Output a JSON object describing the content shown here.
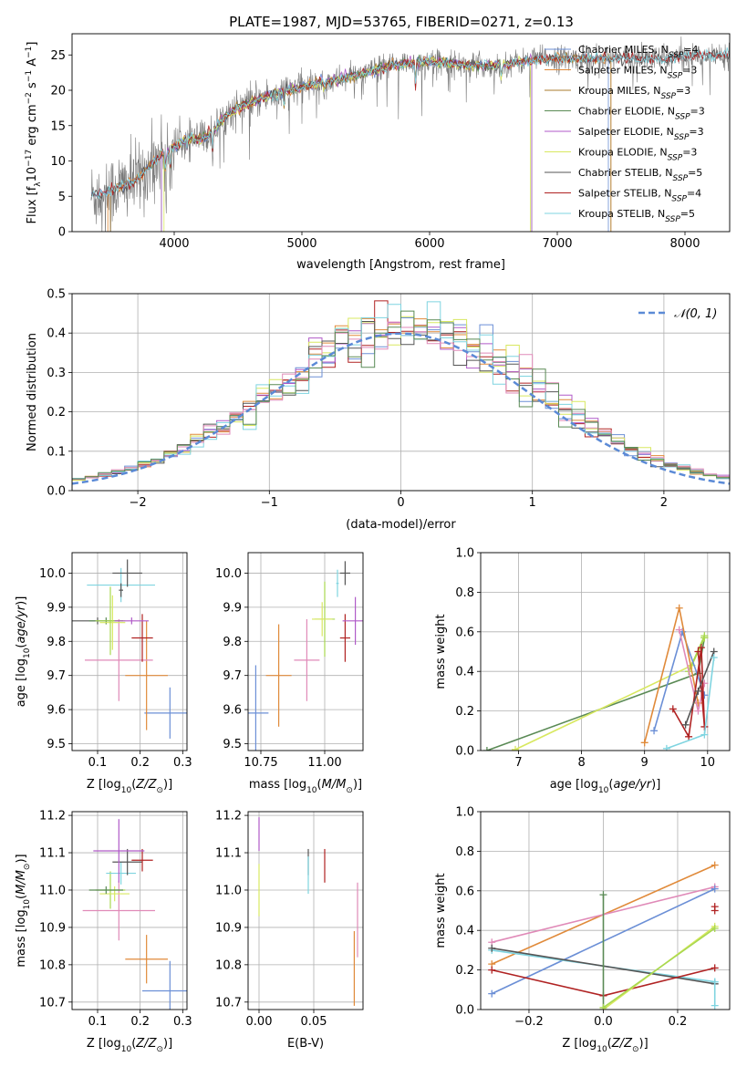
{
  "figure_title": "PLATE=1987, MJD=53765, FIBERID=0271, z=0.13",
  "colors": {
    "Chabrier MILES": "#6b8fd6",
    "Salpeter MILES": "#e08a3a",
    "Kroupa MILES": "#a87b2e",
    "Chabrier ELODIE": "#5a8a55",
    "Salpeter ELODIE": "#b05ac8",
    "Kroupa ELODIE": "#d8e860",
    "Chabrier STELIB": "#555555",
    "Salpeter STELIB": "#b02222",
    "Kroupa STELIB": "#7fd4e0",
    "pink": "#e08ab8",
    "lime": "#a8d850",
    "gaussian": "#5b8ad6"
  },
  "chart_data": [
    {
      "type": "line",
      "id": "spectrum",
      "xlabel": "wavelength [Angstrom, rest frame]",
      "ylabel": "Flux [fλ10⁻¹⁷ erg cm⁻² s⁻¹ A⁻¹]",
      "xlim": [
        3200,
        8350
      ],
      "ylim": [
        0,
        28
      ],
      "xticks": [
        4000,
        5000,
        6000,
        7000,
        8000
      ],
      "yticks": [
        0,
        5,
        10,
        15,
        20,
        25
      ],
      "grid": false,
      "legend_position": "top-right",
      "continuum": {
        "x": [
          3400,
          3500,
          3600,
          3700,
          3800,
          3900,
          4000,
          4100,
          4200,
          4300,
          4400,
          4500,
          4700,
          4900,
          5100,
          5300,
          5500,
          5700,
          5900,
          6100,
          6300,
          6500,
          6700,
          6900,
          7100,
          7300,
          7500,
          7700,
          7900,
          8100,
          8300
        ],
        "y": [
          5.2,
          5.8,
          6.5,
          7.2,
          9.0,
          11.0,
          12.0,
          13.2,
          13.0,
          14.0,
          16.5,
          17.5,
          19.0,
          20.0,
          21.0,
          21.5,
          22.5,
          23.5,
          24.0,
          24.0,
          23.5,
          23.5,
          24.0,
          24.5,
          24.5,
          24.5,
          24.5,
          24.5,
          24.5,
          25.0,
          25.0
        ]
      },
      "series": [
        {
          "name": "Chabrier MILES, N_SSP=4",
          "xmin": 3350,
          "xmax": 7400
        },
        {
          "name": "Salpeter MILES, N_SSP=3",
          "xmin": 3480,
          "xmax": 7420
        },
        {
          "name": "Kroupa MILES, N_SSP=3",
          "xmin": 3500,
          "xmax": 7420
        },
        {
          "name": "Chabrier ELODIE, N_SSP=3",
          "xmin": 3900,
          "xmax": 6800
        },
        {
          "name": "Salpeter ELODIE, N_SSP=3",
          "xmin": 3900,
          "xmax": 6800
        },
        {
          "name": "Kroupa ELODIE, N_SSP=3",
          "xmin": 3920,
          "xmax": 6790
        },
        {
          "name": "Chabrier STELIB, N_SSP=5",
          "xmin": 3350,
          "xmax": 8350
        },
        {
          "name": "Salpeter STELIB, N_SSP=4",
          "xmin": 3350,
          "xmax": 8350
        },
        {
          "name": "Kroupa STELIB, N_SSP=5",
          "xmin": 3350,
          "xmax": 8350
        }
      ]
    },
    {
      "type": "histogram",
      "id": "residuals",
      "xlabel": "(data-model)/error",
      "ylabel": "Normed distribution",
      "xlim": [
        -2.5,
        2.5
      ],
      "ylim": [
        0,
        0.5
      ],
      "xticks": [
        -2,
        -1,
        0,
        1,
        2
      ],
      "yticks": [
        0.0,
        0.1,
        0.2,
        0.3,
        0.4,
        0.5
      ],
      "grid": true,
      "legend": "𝒩(0, 1)",
      "legend_position": "top-right",
      "bin_width": 0.1
    },
    {
      "type": "scatter",
      "id": "age-Z",
      "xlabel": "Z [log₁₀(Z/Z⊙)]",
      "ylabel": "age  [log₁₀(age/yr)]",
      "xlim": [
        0.04,
        0.31
      ],
      "ylim": [
        9.48,
        10.06
      ],
      "xticks": [
        0.1,
        0.2,
        0.3
      ],
      "yticks": [
        9.5,
        9.6,
        9.7,
        9.8,
        9.9,
        10.0
      ],
      "grid": true,
      "points": [
        {
          "c": "#6b8fd6",
          "x": 0.27,
          "xe": 0.06,
          "y": 9.59,
          "ye": 0.075
        },
        {
          "c": "#e08a3a",
          "x": 0.215,
          "xe": 0.05,
          "y": 9.7,
          "ye": 0.16
        },
        {
          "c": "#e08ab8",
          "x": 0.15,
          "xe": 0.08,
          "y": 9.745,
          "ye": 0.12
        },
        {
          "c": "#b02222",
          "x": 0.205,
          "xe": 0.025,
          "y": 9.81,
          "ye": 0.07
        },
        {
          "c": "#555555",
          "x": 0.1,
          "xe": 0.06,
          "y": 9.86,
          "ye": 0.01
        },
        {
          "c": "#5a8a55",
          "x": 0.12,
          "xe": 0.04,
          "y": 9.86,
          "ye": 0.01
        },
        {
          "c": "#d8e860",
          "x": 0.135,
          "xe": 0.03,
          "y": 9.855,
          "ye": 0.08
        },
        {
          "c": "#a8d850",
          "x": 0.13,
          "xe": 0.035,
          "y": 9.86,
          "ye": 0.1
        },
        {
          "c": "#b05ac8",
          "x": 0.18,
          "xe": 0.04,
          "y": 9.86,
          "ye": 0.01
        },
        {
          "c": "#7fd4e0",
          "x": 0.155,
          "xe": 0.08,
          "y": 9.965,
          "ye": 0.05
        },
        {
          "c": "#555555",
          "x": 0.17,
          "xe": 0.035,
          "y": 10.0,
          "ye": 0.04
        },
        {
          "c": "#555555",
          "x": 0.155,
          "xe": 0.005,
          "y": 9.95,
          "ye": 0.02
        }
      ]
    },
    {
      "type": "scatter",
      "id": "age-mass",
      "xlabel": "mass [log₁₀(M/M⊙)]",
      "ylabel": "",
      "xlim": [
        10.7,
        11.15
      ],
      "ylim": [
        9.48,
        10.06
      ],
      "xticks": [
        10.75,
        11.0
      ],
      "tick_labels": [
        "10.75",
        "11.00"
      ],
      "yticks": [
        9.5,
        9.6,
        9.7,
        9.8,
        9.9,
        10.0
      ],
      "grid": true,
      "points": [
        {
          "c": "#6b8fd6",
          "x": 10.73,
          "xe": 0.05,
          "y": 9.59,
          "ye": 0.14
        },
        {
          "c": "#e08a3a",
          "x": 10.82,
          "xe": 0.05,
          "y": 9.7,
          "ye": 0.15
        },
        {
          "c": "#e08ab8",
          "x": 10.93,
          "xe": 0.05,
          "y": 9.745,
          "ye": 0.12
        },
        {
          "c": "#b02222",
          "x": 11.08,
          "xe": 0.02,
          "y": 9.81,
          "ye": 0.07
        },
        {
          "c": "#a8d850",
          "x": 11.0,
          "xe": 0.04,
          "y": 9.865,
          "ye": 0.11
        },
        {
          "c": "#d8e860",
          "x": 10.99,
          "xe": 0.04,
          "y": 9.865,
          "ye": 0.05
        },
        {
          "c": "#b05ac8",
          "x": 11.12,
          "xe": 0.05,
          "y": 9.86,
          "ye": 0.07
        },
        {
          "c": "#7fd4e0",
          "x": 11.05,
          "xe": 0.005,
          "y": 9.97,
          "ye": 0.04
        },
        {
          "c": "#555555",
          "x": 11.08,
          "xe": 0.02,
          "y": 10.0,
          "ye": 0.035
        }
      ]
    },
    {
      "type": "line",
      "id": "weight-age",
      "xlabel": "age  [log₁₀(age/yr)]",
      "ylabel": "mass weight",
      "xlim": [
        6.4,
        10.35
      ],
      "ylim": [
        0,
        1.0
      ],
      "xticks": [
        7,
        8,
        9,
        10
      ],
      "yticks": [
        0.0,
        0.2,
        0.4,
        0.6,
        0.8,
        1.0
      ],
      "grid": true,
      "series": [
        {
          "c": "#5a8a55",
          "x": [
            6.5,
            9.85,
            9.95
          ],
          "y": [
            0.0,
            0.39,
            0.57
          ]
        },
        {
          "c": "#d8e860",
          "x": [
            6.95,
            9.75,
            9.95
          ],
          "y": [
            0.005,
            0.43,
            0.57
          ]
        },
        {
          "c": "#a8d850",
          "x": [
            9.95,
            9.7,
            9.95
          ],
          "y": [
            0.57,
            0.4,
            0.58
          ]
        },
        {
          "c": "#6b8fd6",
          "x": [
            9.15,
            9.6,
            9.95
          ],
          "y": [
            0.1,
            0.6,
            0.28
          ]
        },
        {
          "c": "#e08a3a",
          "x": [
            9.0,
            9.55,
            9.85
          ],
          "y": [
            0.04,
            0.72,
            0.24
          ]
        },
        {
          "c": "#e08ab8",
          "x": [
            9.55,
            9.85,
            9.95
          ],
          "y": [
            0.61,
            0.2,
            0.34
          ]
        },
        {
          "c": "#b02222",
          "x": [
            9.45,
            9.7,
            9.9,
            9.95,
            9.85
          ],
          "y": [
            0.21,
            0.07,
            0.52,
            0.12,
            0.5
          ]
        },
        {
          "c": "#555555",
          "x": [
            9.65,
            9.85,
            10.1
          ],
          "y": [
            0.13,
            0.3,
            0.5
          ]
        },
        {
          "c": "#7fd4e0",
          "x": [
            9.35,
            9.95,
            10.1
          ],
          "y": [
            0.01,
            0.08,
            0.47
          ]
        }
      ]
    },
    {
      "type": "scatter",
      "id": "mass-Z",
      "xlabel": "Z [log₁₀(Z/Z⊙)]",
      "ylabel": "mass [log₁₀(M/M⊙)]",
      "xlim": [
        0.04,
        0.31
      ],
      "ylim": [
        10.68,
        11.21
      ],
      "xticks": [
        0.1,
        0.2,
        0.3
      ],
      "yticks": [
        10.7,
        10.8,
        10.9,
        11.0,
        11.1,
        11.2
      ],
      "grid": true,
      "points": [
        {
          "c": "#6b8fd6",
          "x": 0.27,
          "xe": 0.065,
          "y": 10.73,
          "ye": 0.08
        },
        {
          "c": "#e08a3a",
          "x": 0.215,
          "xe": 0.05,
          "y": 10.815,
          "ye": 0.065
        },
        {
          "c": "#e08ab8",
          "x": 0.15,
          "xe": 0.085,
          "y": 10.945,
          "ye": 0.08
        },
        {
          "c": "#a8d850",
          "x": 0.13,
          "xe": 0.035,
          "y": 11.0,
          "ye": 0.05
        },
        {
          "c": "#d8e860",
          "x": 0.14,
          "xe": 0.035,
          "y": 10.99,
          "ye": 0.02
        },
        {
          "c": "#5a8a55",
          "x": 0.12,
          "xe": 0.04,
          "y": 11.0,
          "ye": 0.01
        },
        {
          "c": "#7fd4e0",
          "x": 0.155,
          "xe": 0.035,
          "y": 11.045,
          "ye": 0.03
        },
        {
          "c": "#555555",
          "x": 0.17,
          "xe": 0.035,
          "y": 11.075,
          "ye": 0.035
        },
        {
          "c": "#b02222",
          "x": 0.205,
          "xe": 0.025,
          "y": 11.08,
          "ye": 0.03
        },
        {
          "c": "#b05ac8",
          "x": 0.15,
          "xe": 0.06,
          "y": 11.105,
          "ye": 0.085
        }
      ]
    },
    {
      "type": "scatter",
      "id": "mass-EBV",
      "xlabel": "E(B-V)",
      "ylabel": "",
      "xlim": [
        -0.01,
        0.095
      ],
      "ylim": [
        10.68,
        11.21
      ],
      "xticks": [
        0.0,
        0.05
      ],
      "tick_labels": [
        "0.00",
        "0.05"
      ],
      "yticks": [
        10.7,
        10.8,
        10.9,
        11.0,
        11.1,
        11.2
      ],
      "grid": true,
      "points": [
        {
          "c": "#b05ac8",
          "x": 0.0,
          "xe": 0.0,
          "y": 11.15,
          "ye": 0.045
        },
        {
          "c": "#d8e860",
          "x": 0.0,
          "xe": 0.0,
          "y": 11.0,
          "ye": 0.07
        },
        {
          "c": "#555555",
          "x": 0.045,
          "xe": 0.0,
          "y": 11.075,
          "ye": 0.035
        },
        {
          "c": "#7fd4e0",
          "x": 0.045,
          "xe": 0.0,
          "y": 11.04,
          "ye": 0.05
        },
        {
          "c": "#b02222",
          "x": 0.06,
          "xe": 0.0,
          "y": 11.065,
          "ye": 0.045
        },
        {
          "c": "#e08ab8",
          "x": 0.09,
          "xe": 0.0,
          "y": 10.92,
          "ye": 0.1
        },
        {
          "c": "#e08a3a",
          "x": 0.087,
          "xe": 0.0,
          "y": 10.79,
          "ye": 0.1
        }
      ]
    },
    {
      "type": "line",
      "id": "weight-Z",
      "xlabel": "Z [log₁₀(Z/Z⊙)]",
      "ylabel": "mass weight",
      "xlim": [
        -0.33,
        0.34
      ],
      "ylim": [
        0,
        1.0
      ],
      "xticks": [
        -0.2,
        0.0,
        0.2
      ],
      "yticks": [
        0.0,
        0.2,
        0.4,
        0.6,
        0.8,
        1.0
      ],
      "grid": true,
      "series": [
        {
          "c": "#e08a3a",
          "x": [
            -0.3,
            0.3
          ],
          "y": [
            0.23,
            0.73
          ]
        },
        {
          "c": "#e08ab8",
          "x": [
            -0.3,
            0.3
          ],
          "y": [
            0.34,
            0.62
          ]
        },
        {
          "c": "#6b8fd6",
          "x": [
            -0.3,
            0.3
          ],
          "y": [
            0.08,
            0.61
          ]
        },
        {
          "c": "#7fd4e0",
          "x": [
            -0.3,
            0.3
          ],
          "y": [
            0.3,
            0.14
          ]
        },
        {
          "c": "#555555",
          "x": [
            -0.3,
            0.3
          ],
          "y": [
            0.31,
            0.13
          ]
        },
        {
          "c": "#b02222",
          "x": [
            -0.3,
            0.0,
            0.3
          ],
          "y": [
            0.2,
            0.07,
            0.21
          ]
        },
        {
          "c": "#5a8a55",
          "x": [
            0.0,
            0.0
          ],
          "y": [
            0.0,
            0.58
          ]
        },
        {
          "c": "#d8e860",
          "x": [
            0.0,
            0.3
          ],
          "y": [
            0.0,
            0.42
          ]
        },
        {
          "c": "#a8d850",
          "x": [
            0.0,
            0.3
          ],
          "y": [
            0.01,
            0.41
          ]
        },
        {
          "c": "#b02222",
          "x": [
            0.3,
            0.3
          ],
          "y": [
            0.5,
            0.52
          ]
        },
        {
          "c": "#7fd4e0",
          "x": [
            0.3,
            0.3
          ],
          "y": [
            0.02,
            0.14
          ]
        }
      ]
    }
  ]
}
